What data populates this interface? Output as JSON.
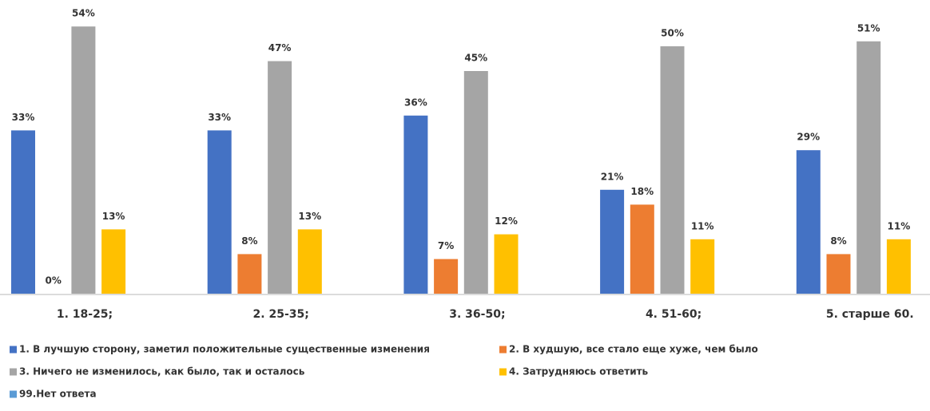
{
  "chart_data": {
    "type": "bar",
    "categories": [
      "1. 18-25;",
      "2. 25-35;",
      "3. 36-50;",
      "4. 51-60;",
      "5. старше 60."
    ],
    "series": [
      {
        "name": "1. В лучшую сторону, заметил положительные существенные изменения",
        "color": "#4472c4",
        "values": [
          33,
          33,
          36,
          21,
          29
        ],
        "value_labels": [
          "33%",
          "33%",
          "36%",
          "21%",
          "29%"
        ]
      },
      {
        "name": "2. В худшую, все стало еще хуже, чем было",
        "color": "#ed7d31",
        "values": [
          0,
          8,
          7,
          18,
          8
        ],
        "value_labels": [
          "0%",
          "8%",
          "7%",
          "18%",
          "8%"
        ]
      },
      {
        "name": "3. Ничего не изменилось, как было,  так и осталось",
        "color": "#a5a5a5",
        "values": [
          54,
          47,
          45,
          50,
          51
        ],
        "value_labels": [
          "54%",
          "47%",
          "45%",
          "50%",
          "51%"
        ]
      },
      {
        "name": "4. Затрудняюсь ответить",
        "color": "#ffc000",
        "values": [
          13,
          13,
          12,
          11,
          11
        ],
        "value_labels": [
          "13%",
          "13%",
          "12%",
          "11%",
          "11%"
        ]
      },
      {
        "name": "99.Нет ответа",
        "color": "#5b9bd5",
        "values": [
          null,
          null,
          null,
          null,
          null
        ]
      }
    ],
    "legend": "bottom"
  }
}
